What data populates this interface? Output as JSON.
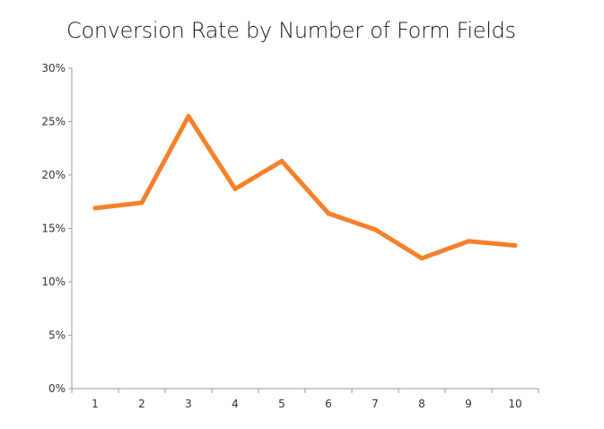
{
  "chart_data": {
    "type": "line",
    "title": "Conversion Rate by Number of Form Fields",
    "xlabel": "",
    "ylabel": "",
    "categories": [
      "1",
      "2",
      "3",
      "4",
      "5",
      "6",
      "7",
      "8",
      "9",
      "10"
    ],
    "series": [
      {
        "values": [
          16.9,
          17.4,
          25.5,
          18.7,
          21.3,
          16.4,
          14.9,
          12.2,
          13.8,
          13.4
        ]
      }
    ],
    "ylim": [
      0,
      30
    ],
    "yticks": [
      0,
      5,
      10,
      15,
      20,
      25,
      30
    ],
    "ytick_labels": [
      "0%",
      "5%",
      "10%",
      "15%",
      "20%",
      "25%",
      "30%"
    ],
    "grid": false,
    "legend": "none",
    "line_color": "#f5802a",
    "axis_color": "#9a9a9a"
  }
}
